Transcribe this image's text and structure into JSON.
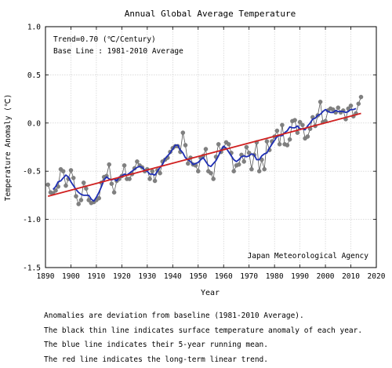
{
  "chart_data": {
    "type": "line",
    "title": "Annual Global Average Temperature",
    "xlabel": "Year",
    "ylabel": "Temperature Anomaly (℃)",
    "xlim": [
      1890,
      2020
    ],
    "ylim": [
      -1.5,
      1.0
    ],
    "x_ticks": [
      "1890",
      "1900",
      "1910",
      "1920",
      "1930",
      "1940",
      "1950",
      "1960",
      "1970",
      "1980",
      "1990",
      "2000",
      "2010",
      "2020"
    ],
    "y_ticks": [
      "-1.5",
      "-1.0",
      "-0.5",
      "0.0",
      "0.5",
      "1.0"
    ],
    "grid": true,
    "annotations": [
      "Trend=0.70 (℃/Century)",
      "Base Line : 1981-2010 Average"
    ],
    "source": "Japan Meteorological Agency",
    "colors": {
      "anomaly": "#555555",
      "markers": "#808080",
      "running_mean": "#1f2fb4",
      "trend": "#d02020"
    },
    "series": [
      {
        "x": [
          1891,
          1892,
          1893,
          1894,
          1895,
          1896,
          1897,
          1898,
          1899,
          1900,
          1901,
          1902,
          1903,
          1904,
          1905,
          1906,
          1907,
          1908,
          1909,
          1910,
          1911,
          1912,
          1913,
          1914,
          1915,
          1916,
          1917,
          1918,
          1919,
          1920,
          1921,
          1922,
          1923,
          1924,
          1925,
          1926,
          1927,
          1928,
          1929,
          1930,
          1931,
          1932,
          1933,
          1934,
          1935,
          1936,
          1937,
          1938,
          1939,
          1940,
          1941,
          1942,
          1943,
          1944,
          1945,
          1946,
          1947,
          1948,
          1949,
          1950,
          1951,
          1952,
          1953,
          1954,
          1955,
          1956,
          1957,
          1958,
          1959,
          1960,
          1961,
          1962,
          1963,
          1964,
          1965,
          1966,
          1967,
          1968,
          1969,
          1970,
          1971,
          1972,
          1973,
          1974,
          1975,
          1976,
          1977,
          1978,
          1979,
          1980,
          1981,
          1982,
          1983,
          1984,
          1985,
          1986,
          1987,
          1988,
          1989,
          1990,
          1991,
          1992,
          1993,
          1994,
          1995,
          1996,
          1997,
          1998,
          1999,
          2000,
          2001,
          2002,
          2003,
          2004,
          2005,
          2006,
          2007,
          2008,
          2009,
          2010,
          2011,
          2012,
          2013,
          2014
        ],
        "values": [
          -0.64,
          -0.72,
          -0.73,
          -0.7,
          -0.66,
          -0.48,
          -0.5,
          -0.65,
          -0.58,
          -0.49,
          -0.57,
          -0.76,
          -0.84,
          -0.8,
          -0.62,
          -0.68,
          -0.8,
          -0.83,
          -0.82,
          -0.8,
          -0.78,
          -0.62,
          -0.56,
          -0.55,
          -0.43,
          -0.63,
          -0.72,
          -0.6,
          -0.58,
          -0.55,
          -0.44,
          -0.58,
          -0.58,
          -0.53,
          -0.47,
          -0.4,
          -0.44,
          -0.46,
          -0.5,
          -0.48,
          -0.58,
          -0.5,
          -0.6,
          -0.49,
          -0.52,
          -0.4,
          -0.38,
          -0.36,
          -0.3,
          -0.26,
          -0.24,
          -0.24,
          -0.3,
          -0.1,
          -0.23,
          -0.42,
          -0.36,
          -0.43,
          -0.44,
          -0.5,
          -0.36,
          -0.34,
          -0.27,
          -0.5,
          -0.52,
          -0.58,
          -0.35,
          -0.22,
          -0.3,
          -0.26,
          -0.2,
          -0.22,
          -0.31,
          -0.5,
          -0.44,
          -0.43,
          -0.33,
          -0.4,
          -0.25,
          -0.31,
          -0.48,
          -0.33,
          -0.2,
          -0.5,
          -0.38,
          -0.48,
          -0.19,
          -0.28,
          -0.19,
          -0.14,
          -0.08,
          -0.22,
          -0.02,
          -0.22,
          -0.23,
          -0.17,
          0.02,
          0.03,
          -0.1,
          0.01,
          -0.02,
          -0.16,
          -0.14,
          -0.06,
          0.06,
          -0.03,
          0.08,
          0.22,
          0.01,
          0.02,
          0.13,
          0.15,
          0.14,
          0.11,
          0.16,
          0.11,
          0.13,
          0.04,
          0.15,
          0.18,
          0.07,
          0.1,
          0.2,
          0.27
        ]
      },
      {
        "x": [
          1893,
          1894,
          1895,
          1896,
          1897,
          1898,
          1899,
          1900,
          1901,
          1902,
          1903,
          1904,
          1905,
          1906,
          1907,
          1908,
          1909,
          1910,
          1911,
          1912,
          1913,
          1914,
          1915,
          1916,
          1917,
          1918,
          1919,
          1920,
          1921,
          1922,
          1923,
          1924,
          1925,
          1926,
          1927,
          1928,
          1929,
          1930,
          1931,
          1932,
          1933,
          1934,
          1935,
          1936,
          1937,
          1938,
          1939,
          1940,
          1941,
          1942,
          1943,
          1944,
          1945,
          1946,
          1947,
          1948,
          1949,
          1950,
          1951,
          1952,
          1953,
          1954,
          1955,
          1956,
          1957,
          1958,
          1959,
          1960,
          1961,
          1962,
          1963,
          1964,
          1965,
          1966,
          1967,
          1968,
          1969,
          1970,
          1971,
          1972,
          1973,
          1974,
          1975,
          1976,
          1977,
          1978,
          1979,
          1980,
          1981,
          1982,
          1983,
          1984,
          1985,
          1986,
          1987,
          1988,
          1989,
          1990,
          1991,
          1992,
          1993,
          1994,
          1995,
          1996,
          1997,
          1998,
          1999,
          2000,
          2001,
          2002,
          2003,
          2004,
          2005,
          2006,
          2007,
          2008,
          2009,
          2010,
          2011,
          2012
        ],
        "values": [
          -0.69,
          -0.66,
          -0.61,
          -0.6,
          -0.57,
          -0.54,
          -0.56,
          -0.61,
          -0.65,
          -0.69,
          -0.72,
          -0.74,
          -0.75,
          -0.75,
          -0.75,
          -0.79,
          -0.81,
          -0.77,
          -0.72,
          -0.66,
          -0.59,
          -0.56,
          -0.58,
          -0.59,
          -0.58,
          -0.6,
          -0.56,
          -0.55,
          -0.53,
          -0.54,
          -0.52,
          -0.5,
          -0.48,
          -0.46,
          -0.45,
          -0.46,
          -0.49,
          -0.5,
          -0.53,
          -0.53,
          -0.54,
          -0.5,
          -0.46,
          -0.43,
          -0.37,
          -0.34,
          -0.31,
          -0.27,
          -0.23,
          -0.23,
          -0.28,
          -0.31,
          -0.36,
          -0.38,
          -0.4,
          -0.43,
          -0.42,
          -0.41,
          -0.38,
          -0.36,
          -0.4,
          -0.44,
          -0.45,
          -0.42,
          -0.39,
          -0.34,
          -0.28,
          -0.24,
          -0.26,
          -0.3,
          -0.34,
          -0.38,
          -0.4,
          -0.38,
          -0.35,
          -0.34,
          -0.35,
          -0.34,
          -0.32,
          -0.33,
          -0.38,
          -0.38,
          -0.34,
          -0.32,
          -0.31,
          -0.26,
          -0.22,
          -0.18,
          -0.14,
          -0.13,
          -0.13,
          -0.1,
          -0.08,
          -0.04,
          -0.05,
          -0.05,
          -0.03,
          -0.06,
          -0.06,
          -0.07,
          -0.03,
          0.0,
          0.04,
          0.05,
          0.08,
          0.09,
          0.12,
          0.14,
          0.12,
          0.11,
          0.11,
          0.13,
          0.12,
          0.12,
          0.12,
          0.11,
          0.12,
          0.14,
          0.14,
          0.15
        ]
      },
      {
        "x": [
          1891,
          2014
        ],
        "values": [
          -0.76,
          0.1
        ]
      }
    ]
  },
  "notes": [
    "Anomalies are deviation from baseline (1981-2010 Average).",
    "The black thin line indicates surface temperature anomaly of each year.",
    "The blue line indicates their 5-year running mean.",
    "The red line indicates the long-term linear trend."
  ]
}
